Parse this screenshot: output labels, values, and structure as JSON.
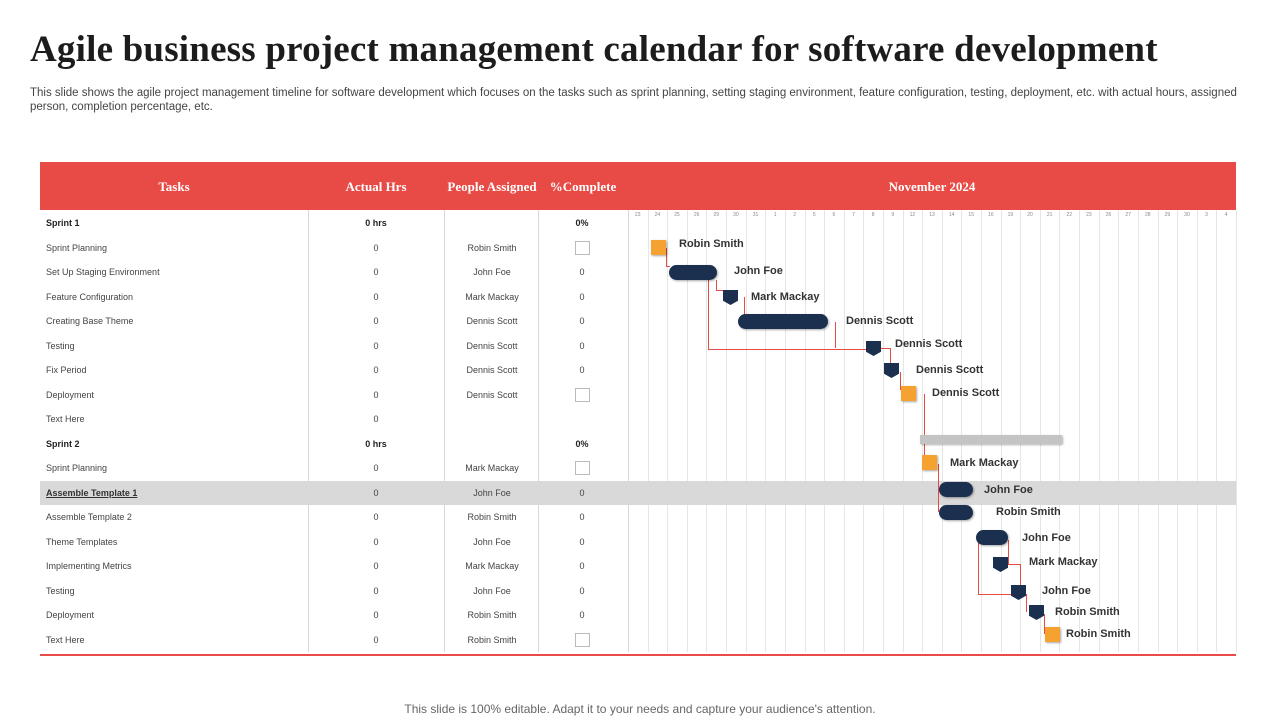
{
  "title": "Agile business project management calendar for software development",
  "subtitle": "This slide shows the agile project management timeline for software development which focuses on the tasks such as sprint planning, setting staging environment, feature configuration, testing, deployment, etc. with actual hours, assigned person, completion percentage, etc.",
  "footer": "This slide is 100% editable. Adapt it to your needs and capture your audience's attention.",
  "header": {
    "tasks": "Tasks",
    "actual_hrs": "Actual Hrs",
    "people": "People Assigned",
    "complete": "%Complete",
    "month": "November 2024"
  },
  "days": [
    "23",
    "24",
    "25",
    "26",
    "29",
    "30",
    "31",
    "1",
    "2",
    "5",
    "6",
    "7",
    "8",
    "9",
    "12",
    "13",
    "14",
    "15",
    "16",
    "19",
    "20",
    "21",
    "22",
    "23",
    "26",
    "27",
    "28",
    "29",
    "30",
    "3",
    "4"
  ],
  "rows": [
    {
      "task": "Sprint 1",
      "hrs": "0 hrs",
      "people": "",
      "pct": "0%",
      "type": "sprint"
    },
    {
      "task": "Sprint Planning",
      "hrs": "0",
      "people": "Robin Smith",
      "pct": "",
      "type": "check"
    },
    {
      "task": "Set Up Staging Environment",
      "hrs": "0",
      "people": "John Foe",
      "pct": "0",
      "type": "task"
    },
    {
      "task": "Feature Configuration",
      "hrs": "0",
      "people": "Mark Mackay",
      "pct": "0",
      "type": "task"
    },
    {
      "task": "Creating Base Theme",
      "hrs": "0",
      "people": "Dennis Scott",
      "pct": "0",
      "type": "task"
    },
    {
      "task": "Testing",
      "hrs": "0",
      "people": "Dennis Scott",
      "pct": "0",
      "type": "task"
    },
    {
      "task": "Fix Period",
      "hrs": "0",
      "people": "Dennis Scott",
      "pct": "0",
      "type": "task"
    },
    {
      "task": "Deployment",
      "hrs": "0",
      "people": "Dennis Scott",
      "pct": "",
      "type": "check"
    },
    {
      "task": "Text Here",
      "hrs": "0",
      "people": "",
      "pct": "",
      "type": "task"
    },
    {
      "task": "Sprint 2",
      "hrs": "0 hrs",
      "people": "",
      "pct": "0%",
      "type": "sprint"
    },
    {
      "task": "Sprint Planning",
      "hrs": "0",
      "people": "Mark Mackay",
      "pct": "",
      "type": "check"
    },
    {
      "task": "Assemble  Template 1",
      "hrs": "0",
      "people": "John Foe",
      "pct": "0",
      "type": "highlight"
    },
    {
      "task": "Assemble Template  2",
      "hrs": "0",
      "people": "Robin Smith",
      "pct": "0",
      "type": "task"
    },
    {
      "task": "Theme Templates",
      "hrs": "0",
      "people": "John Foe",
      "pct": "0",
      "type": "task"
    },
    {
      "task": "Implementing Metrics",
      "hrs": "0",
      "people": "Mark Mackay",
      "pct": "0",
      "type": "task"
    },
    {
      "task": "Testing",
      "hrs": "0",
      "people": "John Foe",
      "pct": "0",
      "type": "task"
    },
    {
      "task": "Deployment",
      "hrs": "0",
      "people": "Robin Smith",
      "pct": "0",
      "type": "task"
    },
    {
      "task": "Text Here",
      "hrs": "0",
      "people": "Robin Smith",
      "pct": "",
      "type": "check"
    }
  ],
  "gantt": [
    {
      "label": "Robin Smith",
      "shape": "square"
    },
    {
      "label": "John Foe",
      "shape": "pill"
    },
    {
      "label": "Mark Mackay",
      "shape": "tag"
    },
    {
      "label": "Dennis Scott",
      "shape": "pill"
    },
    {
      "label": "Dennis Scott",
      "shape": "tag"
    },
    {
      "label": "Dennis Scott",
      "shape": "tag"
    },
    {
      "label": "Dennis Scott",
      "shape": "square"
    },
    {
      "label": "Mark Mackay",
      "shape": "square"
    },
    {
      "label": "John Foe",
      "shape": "pill"
    },
    {
      "label": "Robin Smith",
      "shape": "pill"
    },
    {
      "label": "John Foe",
      "shape": "pill"
    },
    {
      "label": "Mark Mackay",
      "shape": "tag"
    },
    {
      "label": "John Foe",
      "shape": "tag"
    },
    {
      "label": "Robin Smith",
      "shape": "tag"
    },
    {
      "label": "Robin Smith",
      "shape": "square"
    }
  ],
  "colors": {
    "accent": "#e84a45",
    "navy": "#1b2f4e",
    "orange": "#f5a230",
    "highlight": "#d9d9d9"
  }
}
